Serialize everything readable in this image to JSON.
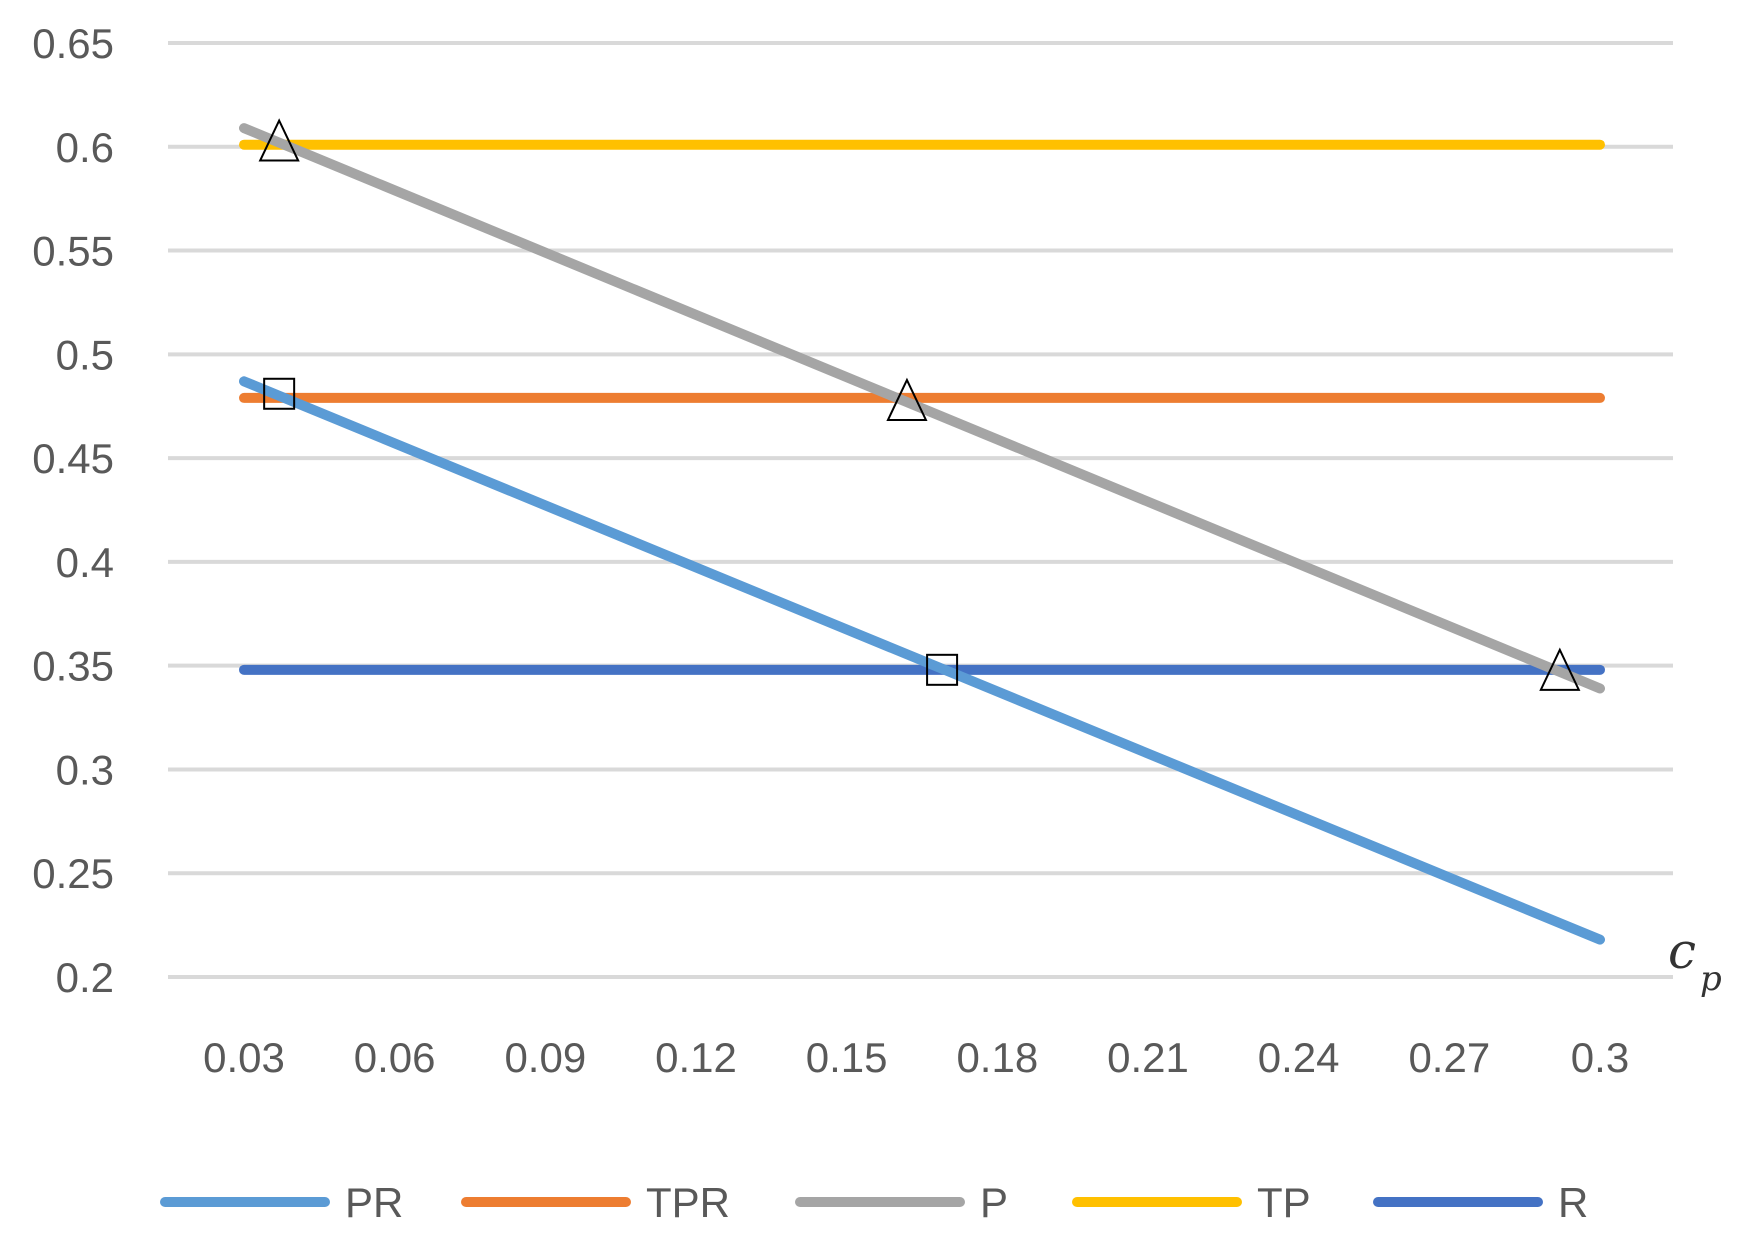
{
  "chart_data": {
    "type": "line",
    "title": "",
    "xlabel_symbol": "c",
    "xlabel_subscript": "p",
    "ylabel": "",
    "x": [
      0.03,
      0.06,
      0.09,
      0.12,
      0.15,
      0.18,
      0.21,
      0.24,
      0.27,
      0.3
    ],
    "xtick_labels": [
      "0.03",
      "0.06",
      "0.09",
      "0.12",
      "0.15",
      "0.18",
      "0.21",
      "0.24",
      "0.27",
      "0.3"
    ],
    "ylim": [
      0.2,
      0.65
    ],
    "ytick_labels": [
      "0.65",
      "0.6",
      "0.55",
      "0.5",
      "0.45",
      "0.4",
      "0.35",
      "0.3",
      "0.25",
      "0.2"
    ],
    "yticks": [
      0.65,
      0.6,
      0.55,
      0.5,
      0.45,
      0.4,
      0.35,
      0.3,
      0.25,
      0.2
    ],
    "grid": "horizontal",
    "legend_position": "bottom",
    "series": [
      {
        "name": "PR",
        "color": "#5B9BD5",
        "x": [
          0.03,
          0.3
        ],
        "values": [
          0.487,
          0.218
        ]
      },
      {
        "name": "TPR",
        "color": "#ED7D31",
        "x": [
          0.03,
          0.3
        ],
        "values": [
          0.479,
          0.479
        ]
      },
      {
        "name": "P",
        "color": "#A5A5A5",
        "x": [
          0.03,
          0.3
        ],
        "values": [
          0.609,
          0.339
        ]
      },
      {
        "name": "TP",
        "color": "#FFC000",
        "x": [
          0.03,
          0.3
        ],
        "values": [
          0.601,
          0.601
        ]
      },
      {
        "name": "R",
        "color": "#4472C4",
        "x": [
          0.03,
          0.3
        ],
        "values": [
          0.348,
          0.348
        ]
      }
    ],
    "markers": [
      {
        "shape": "triangle",
        "x": 0.037,
        "y": 0.603
      },
      {
        "shape": "triangle",
        "x": 0.162,
        "y": 0.478
      },
      {
        "shape": "triangle",
        "x": 0.292,
        "y": 0.348
      },
      {
        "shape": "square",
        "x": 0.037,
        "y": 0.481
      },
      {
        "shape": "square",
        "x": 0.169,
        "y": 0.348
      }
    ]
  }
}
